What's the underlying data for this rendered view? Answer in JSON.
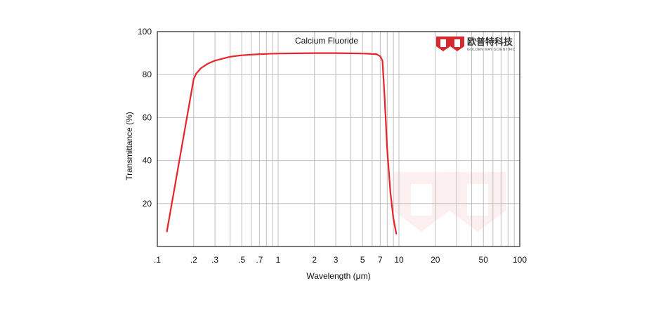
{
  "chart_data": {
    "type": "line",
    "title": "Calcium Fluoride",
    "xlabel": "Wavelength (μm)",
    "ylabel": "Transmittance (%)",
    "x_scale": "log",
    "xlim": [
      0.1,
      100
    ],
    "ylim": [
      0,
      100
    ],
    "grid": true,
    "x_ticks": [
      {
        "v": 0.1,
        "label": ".1"
      },
      {
        "v": 0.2,
        "label": ".2"
      },
      {
        "v": 0.3,
        "label": ".3"
      },
      {
        "v": 0.5,
        "label": ".5"
      },
      {
        "v": 0.7,
        "label": ".7"
      },
      {
        "v": 1,
        "label": "1"
      },
      {
        "v": 2,
        "label": "2"
      },
      {
        "v": 3,
        "label": "3"
      },
      {
        "v": 5,
        "label": "5"
      },
      {
        "v": 7,
        "label": "7"
      },
      {
        "v": 10,
        "label": "10"
      },
      {
        "v": 20,
        "label": "20"
      },
      {
        "v": 50,
        "label": "50"
      },
      {
        "v": 100,
        "label": "100"
      }
    ],
    "y_ticks": [
      {
        "v": 20,
        "label": "20"
      },
      {
        "v": 40,
        "label": "40"
      },
      {
        "v": 60,
        "label": "60"
      },
      {
        "v": 80,
        "label": "80"
      },
      {
        "v": 100,
        "label": "100"
      }
    ],
    "series": [
      {
        "color": "#e8242b",
        "x": [
          0.12,
          0.2,
          0.21,
          0.23,
          0.26,
          0.3,
          0.35,
          0.4,
          0.5,
          0.7,
          1,
          2,
          3,
          5,
          6.5,
          7,
          7.3,
          7.6,
          8,
          8.5,
          9,
          9.5
        ],
        "y": [
          7,
          78,
          80.5,
          83,
          85,
          86.5,
          87.5,
          88.3,
          89,
          89.5,
          89.8,
          90,
          90,
          89.8,
          89.5,
          88.5,
          86.5,
          70,
          45,
          25,
          13,
          6
        ]
      }
    ]
  },
  "logo": {
    "name_cn": "欧普特科技",
    "name_en": "GOLDEN WAY SCIENTIFIC",
    "color": "#d7282f"
  }
}
